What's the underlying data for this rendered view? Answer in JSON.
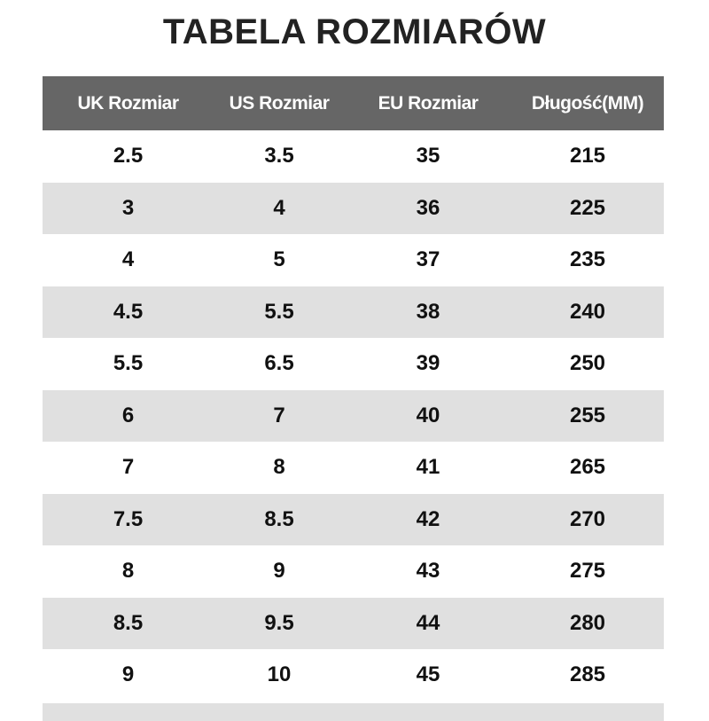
{
  "title": "TABELA ROZMIARÓW",
  "headers": [
    "UK Rozmiar",
    "US Rozmiar",
    "EU Rozmiar",
    "Długość(MM)"
  ],
  "rows": [
    [
      "2.5",
      "3.5",
      "35",
      "215"
    ],
    [
      "3",
      "4",
      "36",
      "225"
    ],
    [
      "4",
      "5",
      "37",
      "235"
    ],
    [
      "4.5",
      "5.5",
      "38",
      "240"
    ],
    [
      "5.5",
      "6.5",
      "39",
      "250"
    ],
    [
      "6",
      "7",
      "40",
      "255"
    ],
    [
      "7",
      "8",
      "41",
      "265"
    ],
    [
      "7.5",
      "8.5",
      "42",
      "270"
    ],
    [
      "8",
      "9",
      "43",
      "275"
    ],
    [
      "8.5",
      "9.5",
      "44",
      "280"
    ],
    [
      "9",
      "10",
      "45",
      "285"
    ]
  ],
  "colors": {
    "header_bg": "#666666",
    "stripe_bg": "#e0e0e0"
  }
}
